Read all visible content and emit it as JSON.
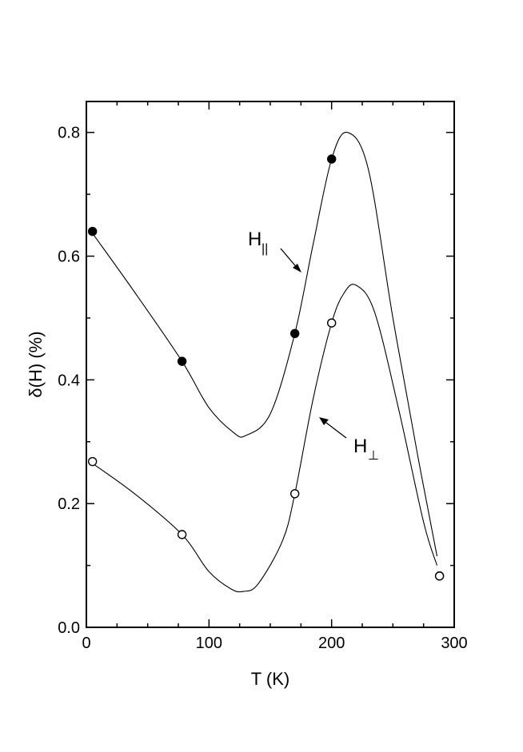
{
  "chart_data": {
    "type": "scatter",
    "xlabel": "T (K)",
    "ylabel": "δ(H) (%)",
    "xlim": [
      0,
      300
    ],
    "ylim": [
      0.0,
      0.85
    ],
    "x_ticks": [
      "0",
      "100",
      "200",
      "300"
    ],
    "y_ticks": [
      "0.0",
      "0.2",
      "0.4",
      "0.6",
      "0.8"
    ],
    "grid": false,
    "series": [
      {
        "name": "H||",
        "marker": "filled-circle",
        "points": [
          [
            5,
            0.64
          ],
          [
            78,
            0.43
          ],
          [
            170,
            0.475
          ],
          [
            200,
            0.757
          ],
          [
            288,
            0.083
          ]
        ],
        "curve": [
          [
            5,
            0.637
          ],
          [
            40,
            0.54
          ],
          [
            78,
            0.43
          ],
          [
            100,
            0.355
          ],
          [
            120,
            0.315
          ],
          [
            130,
            0.31
          ],
          [
            150,
            0.345
          ],
          [
            170,
            0.475
          ],
          [
            185,
            0.62
          ],
          [
            200,
            0.757
          ],
          [
            213,
            0.8
          ],
          [
            230,
            0.74
          ],
          [
            250,
            0.5
          ],
          [
            270,
            0.28
          ],
          [
            286,
            0.115
          ]
        ]
      },
      {
        "name": "H⊥",
        "marker": "open-circle",
        "points": [
          [
            5,
            0.268
          ],
          [
            78,
            0.15
          ],
          [
            170,
            0.216
          ],
          [
            200,
            0.492
          ],
          [
            288,
            0.083
          ]
        ],
        "curve": [
          [
            5,
            0.265
          ],
          [
            40,
            0.215
          ],
          [
            78,
            0.15
          ],
          [
            100,
            0.09
          ],
          [
            118,
            0.062
          ],
          [
            128,
            0.058
          ],
          [
            140,
            0.07
          ],
          [
            160,
            0.14
          ],
          [
            170,
            0.216
          ],
          [
            185,
            0.37
          ],
          [
            200,
            0.492
          ],
          [
            210,
            0.54
          ],
          [
            220,
            0.553
          ],
          [
            235,
            0.51
          ],
          [
            255,
            0.35
          ],
          [
            275,
            0.17
          ],
          [
            286,
            0.1
          ]
        ]
      }
    ],
    "annotations": [
      {
        "id": "para",
        "main": "H",
        "sub": "||"
      },
      {
        "id": "perp",
        "main": "H",
        "sub": "⊥"
      }
    ]
  }
}
